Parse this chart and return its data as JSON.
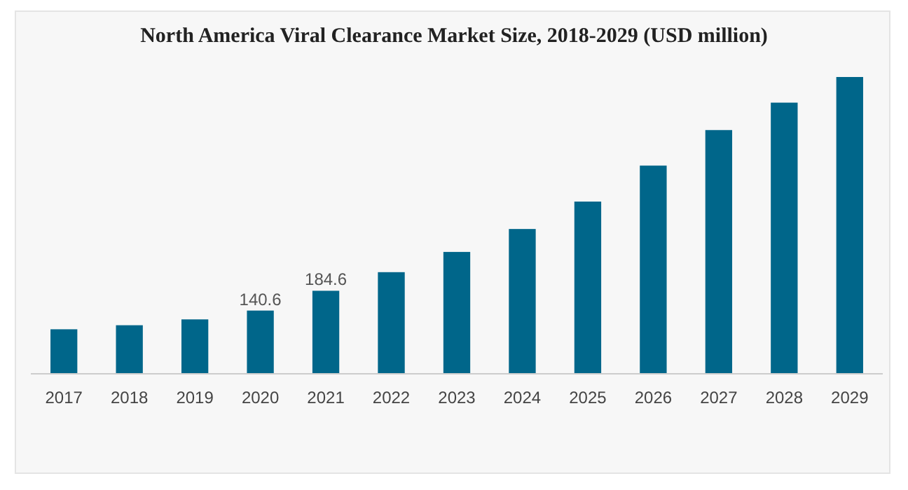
{
  "chart_data": {
    "type": "bar",
    "title": "North America Viral Clearance Market Size, 2018-2029 (USD million)",
    "categories": [
      "2017",
      "2018",
      "2019",
      "2020",
      "2021",
      "2022",
      "2023",
      "2024",
      "2025",
      "2026",
      "2027",
      "2028",
      "2029"
    ],
    "values": [
      99,
      108,
      121,
      140.6,
      184.6,
      226,
      271,
      322,
      383,
      463,
      542,
      603,
      660
    ],
    "value_labels": [
      null,
      null,
      null,
      "140.6",
      "184.6",
      null,
      null,
      null,
      null,
      null,
      null,
      null,
      null
    ],
    "color": "#00668a"
  }
}
